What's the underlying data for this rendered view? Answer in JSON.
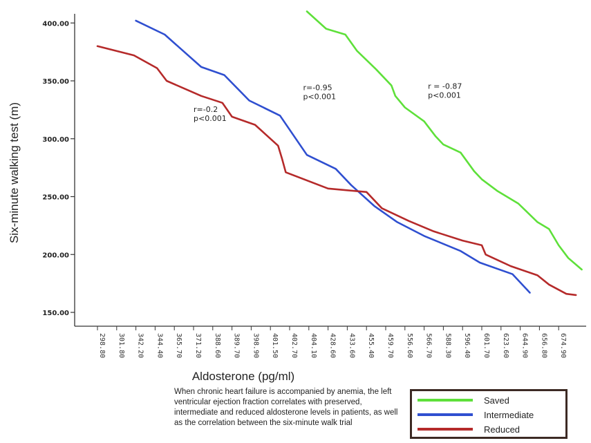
{
  "chart_data": {
    "type": "line",
    "xlabel": "Aldosterone (pg/ml)",
    "ylabel": "Six-minute walking test (m)",
    "ylim": [
      150,
      400
    ],
    "yticks": [
      "150.00",
      "200.00",
      "250.00",
      "300.00",
      "350.00",
      "400.00"
    ],
    "categories": [
      "298.80",
      "301.80",
      "342.20",
      "344.40",
      "365.70",
      "371.20",
      "388.60",
      "389.70",
      "398.90",
      "401.50",
      "402.70",
      "404.10",
      "428.60",
      "433.60",
      "455.40",
      "459.70",
      "556.60",
      "566.70",
      "588.30",
      "596.40",
      "601.70",
      "623.60",
      "644.90",
      "656.80",
      "674.90"
    ],
    "legend_position": "bottom-right",
    "grid": false,
    "series": [
      {
        "name": "Saved",
        "color": "#5ee03a",
        "points": [
          [
            10.9,
            410
          ],
          [
            11.9,
            395
          ],
          [
            12.9,
            390
          ],
          [
            13.5,
            376
          ],
          [
            14.5,
            360
          ],
          [
            15.3,
            346
          ],
          [
            15.5,
            337
          ],
          [
            16.0,
            327
          ],
          [
            17.0,
            315
          ],
          [
            17.6,
            302
          ],
          [
            18.0,
            295
          ],
          [
            18.9,
            288
          ],
          [
            19.6,
            272
          ],
          [
            20.0,
            265
          ],
          [
            20.8,
            255
          ],
          [
            21.9,
            244
          ],
          [
            22.4,
            236
          ],
          [
            22.9,
            228
          ],
          [
            23.5,
            222
          ],
          [
            24.0,
            208
          ],
          [
            24.5,
            197
          ],
          [
            25.2,
            187
          ]
        ]
      },
      {
        "name": "Intermediate",
        "color": "#2f4fd0",
        "points": [
          [
            2.0,
            402
          ],
          [
            3.5,
            390
          ],
          [
            5.4,
            362
          ],
          [
            6.6,
            355
          ],
          [
            7.9,
            333
          ],
          [
            9.5,
            320
          ],
          [
            10.9,
            286
          ],
          [
            12.4,
            274
          ],
          [
            13.2,
            260
          ],
          [
            14.4,
            242
          ],
          [
            15.6,
            228
          ],
          [
            17.0,
            216
          ],
          [
            18.9,
            203
          ],
          [
            19.9,
            193
          ],
          [
            21.6,
            183
          ],
          [
            22.5,
            167
          ]
        ]
      },
      {
        "name": "Reduced",
        "color": "#b52a2a",
        "points": [
          [
            0.0,
            380
          ],
          [
            1.9,
            372
          ],
          [
            3.1,
            361
          ],
          [
            3.6,
            350
          ],
          [
            5.4,
            337
          ],
          [
            6.5,
            331
          ],
          [
            7.0,
            319
          ],
          [
            8.2,
            312
          ],
          [
            9.4,
            294
          ],
          [
            9.6,
            283
          ],
          [
            9.8,
            271
          ],
          [
            12.0,
            257
          ],
          [
            14.0,
            254
          ],
          [
            14.8,
            240
          ],
          [
            16.2,
            229
          ],
          [
            17.5,
            220
          ],
          [
            19.0,
            212
          ],
          [
            20.0,
            208
          ],
          [
            20.2,
            200
          ],
          [
            21.5,
            190
          ],
          [
            22.9,
            182
          ],
          [
            23.5,
            174
          ],
          [
            24.4,
            166
          ],
          [
            24.9,
            165
          ]
        ]
      }
    ],
    "annotations": [
      {
        "lines": [
          "r=-0.2",
          "p<0.001"
        ],
        "x": 5.0,
        "y": 323
      },
      {
        "lines": [
          "r=-0.95",
          "p<0.001"
        ],
        "x": 10.7,
        "y": 342
      },
      {
        "lines": [
          "r = -0.87",
          "p<0.001"
        ],
        "x": 17.2,
        "y": 343
      }
    ]
  },
  "caption": "When chronic heart failure is accompanied by anemia, the left ventricular ejection fraction correlates with preserved, intermediate and reduced aldosterone levels in patients, as well as the correlation between the six-minute walk trial",
  "legend": [
    {
      "label": "Saved",
      "color": "#5ee03a"
    },
    {
      "label": "Intermediate",
      "color": "#2f4fd0"
    },
    {
      "label": "Reduced",
      "color": "#b52a2a"
    }
  ]
}
